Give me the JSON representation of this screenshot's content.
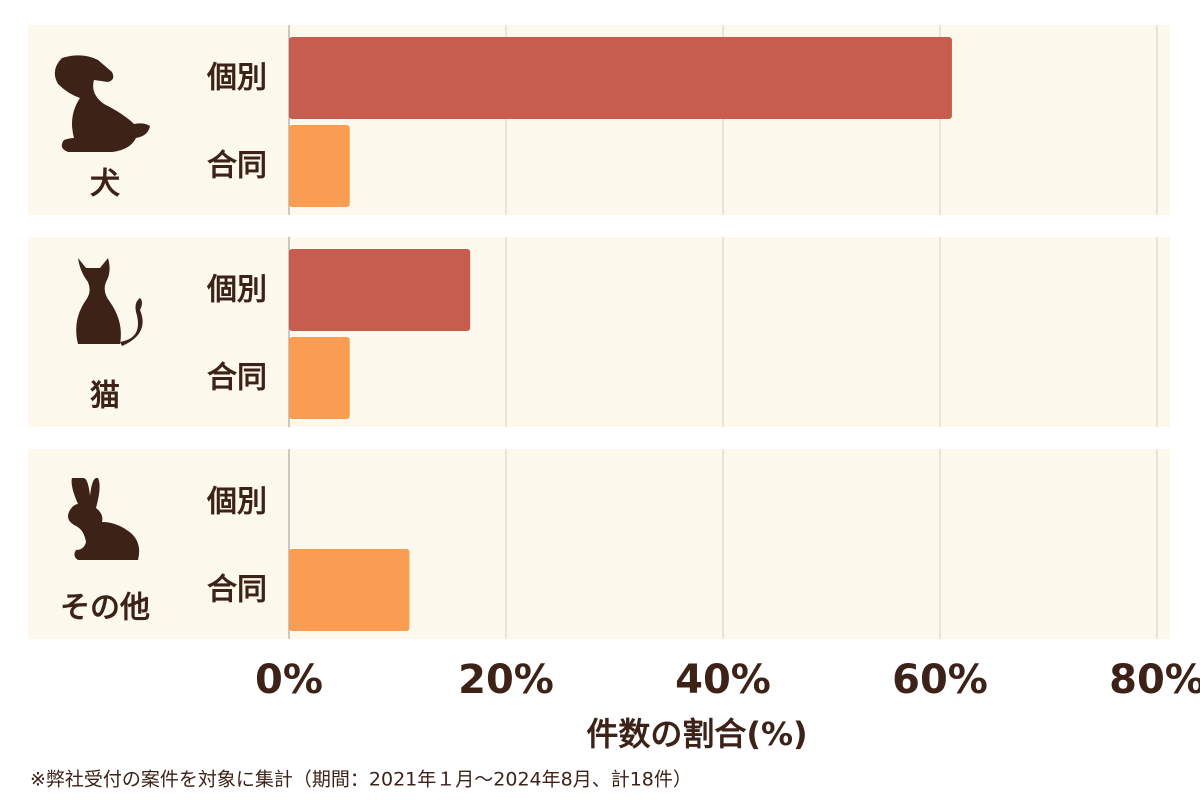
{
  "chart_data": {
    "type": "bar",
    "orientation": "horizontal",
    "groups": [
      "犬",
      "猫",
      "その他"
    ],
    "series": [
      {
        "name": "個別",
        "color": "#c65d4f",
        "values": [
          61.1,
          16.7,
          0
        ]
      },
      {
        "name": "合同",
        "color": "#f99d52",
        "values": [
          5.6,
          5.6,
          11.1
        ]
      }
    ],
    "xlim": [
      0,
      80
    ],
    "xticks": [
      {
        "value": 0,
        "label": "0%"
      },
      {
        "value": 20,
        "label": "20%"
      },
      {
        "value": 40,
        "label": "40%"
      },
      {
        "value": 60,
        "label": "60%"
      },
      {
        "value": 80,
        "label": "80%"
      }
    ],
    "xlabel": "件数の割合(%)",
    "grid": true,
    "footnote": "※弊社受付の案件を対象に集計（期間：2021年１月～2024年8月、計18件）"
  }
}
